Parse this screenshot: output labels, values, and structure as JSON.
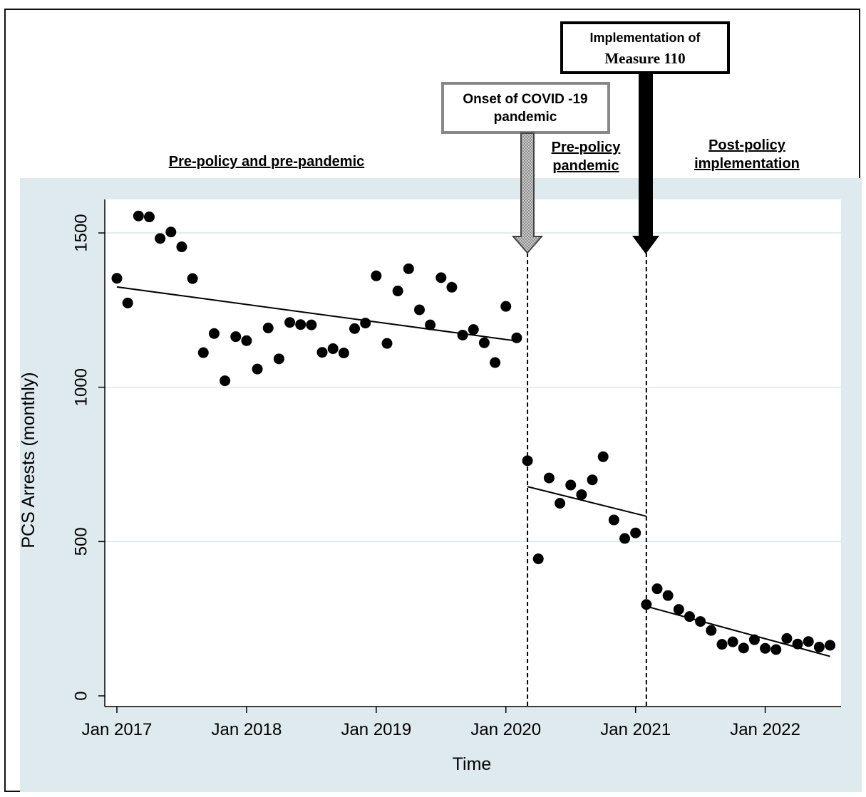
{
  "colors": {
    "outer_background": "#dfeaee",
    "plot_background": "#ffffff",
    "gridline": "#dce6e9",
    "marker": "#000000",
    "fit_line": "#000000",
    "covid_box_border": "#888888",
    "covid_arrow_fill": "#cccccc",
    "measure_box_border": "#000000",
    "measure_arrow_fill": "#000000"
  },
  "chart_data": {
    "type": "scatter",
    "title": "",
    "xlabel": "Time",
    "ylabel": "PCS Arrests (monthly)",
    "x_unit": "month",
    "x_tick_labels": [
      "Jan 2017",
      "Jan 2018",
      "Jan 2019",
      "Jan 2020",
      "Jan 2021",
      "Jan 2022"
    ],
    "x_tick_values": [
      "2017-01",
      "2018-01",
      "2019-01",
      "2020-01",
      "2021-01",
      "2022-01"
    ],
    "xlim": [
      "2017-01",
      "2022-07"
    ],
    "y_ticks": [
      0,
      500,
      1000,
      1500
    ],
    "ylim": [
      -30,
      1600
    ],
    "grid": true,
    "legend": "none",
    "series": [
      {
        "x": [
          "2017-01",
          "2017-02",
          "2017-03",
          "2017-04",
          "2017-05",
          "2017-06",
          "2017-07",
          "2017-08",
          "2017-09",
          "2017-10",
          "2017-11",
          "2017-12",
          "2018-01",
          "2018-02",
          "2018-03",
          "2018-04",
          "2018-05",
          "2018-06",
          "2018-07",
          "2018-08",
          "2018-09",
          "2018-10",
          "2018-11",
          "2018-12",
          "2019-01",
          "2019-02",
          "2019-03",
          "2019-04",
          "2019-05",
          "2019-06",
          "2019-07",
          "2019-08",
          "2019-09",
          "2019-10",
          "2019-11",
          "2019-12",
          "2020-01",
          "2020-02",
          "2020-03",
          "2020-04",
          "2020-05",
          "2020-06",
          "2020-07",
          "2020-08",
          "2020-09",
          "2020-10",
          "2020-11",
          "2020-12",
          "2021-01",
          "2021-02",
          "2021-03",
          "2021-04",
          "2021-05",
          "2021-06",
          "2021-07",
          "2021-08",
          "2021-09",
          "2021-10",
          "2021-11",
          "2021-12",
          "2022-01",
          "2022-02",
          "2022-03",
          "2022-04",
          "2022-05",
          "2022-06",
          "2022-07"
        ],
        "y": [
          1353,
          1273,
          1555,
          1552,
          1482,
          1503,
          1455,
          1352,
          1112,
          1174,
          1021,
          1164,
          1151,
          1059,
          1192,
          1092,
          1210,
          1203,
          1202,
          1113,
          1125,
          1111,
          1190,
          1208,
          1361,
          1142,
          1312,
          1384,
          1251,
          1202,
          1355,
          1324,
          1169,
          1187,
          1144,
          1080,
          1262,
          1160,
          762,
          444,
          706,
          624,
          683,
          652,
          700,
          775,
          570,
          510,
          528,
          296,
          347,
          325,
          280,
          257,
          241,
          212,
          167,
          175,
          155,
          182,
          154,
          150,
          186,
          168,
          176,
          158,
          164
        ]
      }
    ],
    "fit_lines": [
      {
        "segment": "Pre-policy and pre-pandemic",
        "x": [
          "2017-01",
          "2020-02"
        ],
        "y": [
          1325,
          1150
        ]
      },
      {
        "segment": "Pre-policy pandemic",
        "x": [
          "2020-03",
          "2021-02"
        ],
        "y": [
          678,
          582
        ]
      },
      {
        "segment": "Post-policy implementation",
        "x": [
          "2021-02",
          "2022-07"
        ],
        "y": [
          290,
          128
        ]
      }
    ],
    "vertical_lines": [
      {
        "x": "2020-03",
        "style": "dashed"
      },
      {
        "x": "2021-02",
        "style": "dashed"
      }
    ],
    "annotations": {
      "covid_label": "Onset of COVID -19 pandemic",
      "measure_label_line1": "Implementation of",
      "measure_label_line2": "Measure 110",
      "segment_labels": [
        {
          "lines": [
            "Pre-policy and pre-pandemic"
          ]
        },
        {
          "lines": [
            "Pre-policy",
            "pandemic"
          ]
        },
        {
          "lines": [
            "Post-policy",
            "implementation"
          ]
        }
      ]
    }
  }
}
